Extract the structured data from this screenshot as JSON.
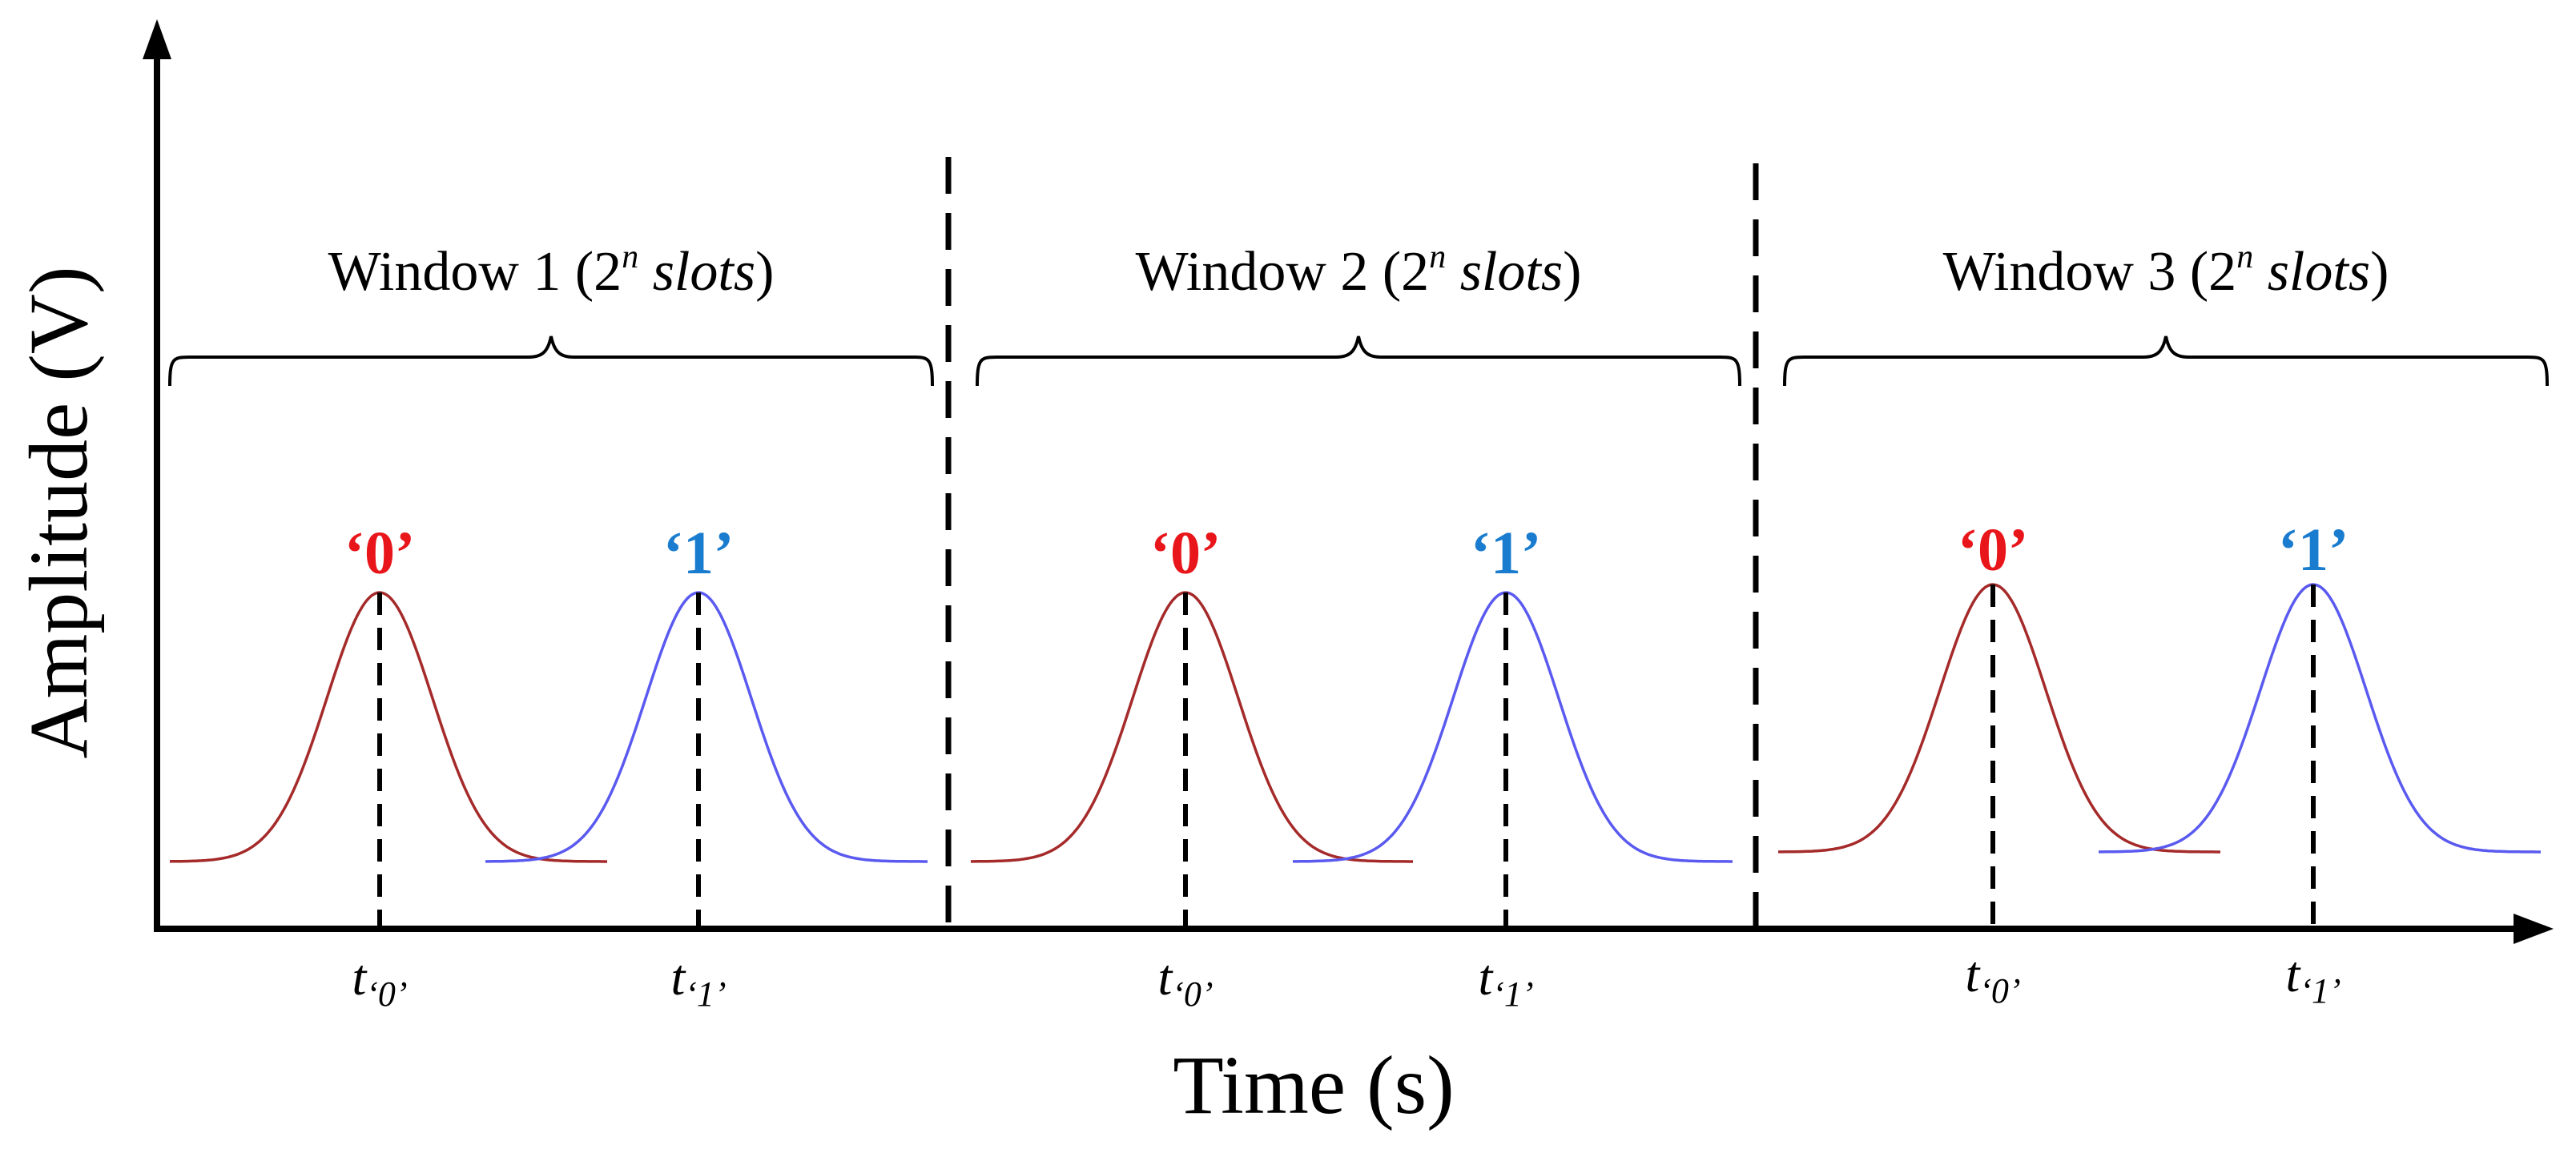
{
  "axes": {
    "y_label": "Amplitude (V)",
    "x_label": "Time (s)"
  },
  "windows": [
    {
      "title_main": "Window 1 (2",
      "title_exp": "n",
      "title_slots": "slots",
      "title_close": ")",
      "pulses": [
        {
          "symbol": "‘0’",
          "tick_base": "t",
          "tick_sub": "‘0’",
          "color": "#a52a2a",
          "label_color": "#e8161b"
        },
        {
          "symbol": "‘1’",
          "tick_base": "t",
          "tick_sub": "‘1’",
          "color": "#5a5af0",
          "label_color": "#1a7ccf"
        }
      ]
    },
    {
      "title_main": "Window 2 (2",
      "title_exp": "n",
      "title_slots": "slots",
      "title_close": ")",
      "pulses": [
        {
          "symbol": "‘0’",
          "tick_base": "t",
          "tick_sub": "‘0’",
          "color": "#a52a2a",
          "label_color": "#e8161b"
        },
        {
          "symbol": "‘1’",
          "tick_base": "t",
          "tick_sub": "‘1’",
          "color": "#5a5af0",
          "label_color": "#1a7ccf"
        }
      ]
    },
    {
      "title_main": "Window 3 (2",
      "title_exp": "n",
      "title_slots": "slots",
      "title_close": ")",
      "pulses": [
        {
          "symbol": "‘0’",
          "tick_base": "t",
          "tick_sub": "‘0’",
          "color": "#a52a2a",
          "label_color": "#e8161b"
        },
        {
          "symbol": "‘1’",
          "tick_base": "t",
          "tick_sub": "‘1’",
          "color": "#5a5af0",
          "label_color": "#1a7ccf"
        }
      ]
    }
  ]
}
